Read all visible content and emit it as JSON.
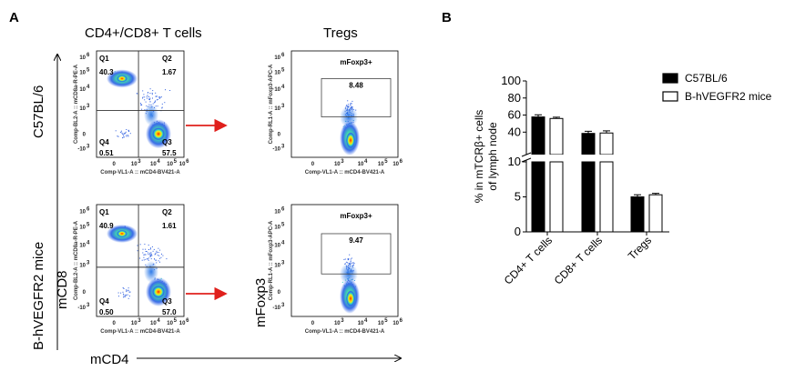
{
  "panel_a": {
    "letter": "A",
    "col1_title": "CD4+/CD8+ T cells",
    "col2_title": "Tregs",
    "row1_label": "C57BL/6",
    "row2_label": "B-hVEGFR2 mice",
    "ylabel_cd8": "mCD8",
    "ylabel_foxp3": "mFoxp3",
    "xlabel_cd4": "mCD4",
    "cd8_axis_text": "Comp-BL2-A :: mCD8a-R-PE-A",
    "foxp3_axis_text": "Comp-RL1-A :: mFoxp3-APC-A",
    "cd4_axis_text": "Comp-VL1-A :: mCD4-BV421-A",
    "gate_name": "mFoxp3+",
    "quadrant_names": [
      "Q1",
      "Q2",
      "Q4",
      "Q3"
    ],
    "plots": [
      {
        "q1": "40.3",
        "q2": "1.67",
        "q4": "0.51",
        "q3": "57.5",
        "tregs": "8.48"
      },
      {
        "q1": "40.9",
        "q2": "1.61",
        "q4": "0.50",
        "q3": "57.0",
        "tregs": "9.47"
      }
    ],
    "x_ticks": [
      "0",
      "10",
      "10",
      "10",
      "10"
    ],
    "x_tick_exps": [
      "",
      "3",
      "4",
      "5",
      "6"
    ],
    "y_ticks": [
      "10",
      "10",
      "10",
      "10",
      "0",
      "-10"
    ],
    "y_tick_exps": [
      "6",
      "5",
      "4",
      "3",
      "",
      "3"
    ]
  },
  "chart_data": {
    "letter": "B",
    "type": "bar",
    "ylabel_line1": "% in mTCRβ+ cells",
    "ylabel_line2": "of lymph node",
    "categories": [
      "CD4+ T cells",
      "CD8+ T cells",
      "Tregs"
    ],
    "y_ticks_upper": [
      "100",
      "80",
      "60",
      "40"
    ],
    "y_ticks_lower": [
      "10",
      "5",
      "0"
    ],
    "ylim_lower": [
      0,
      10
    ],
    "ylim_upper": [
      35,
      100
    ],
    "series": [
      {
        "name": "C57BL/6",
        "values": [
          57.8,
          38.5,
          5.0
        ],
        "errors": [
          2.5,
          2.5,
          0.3
        ],
        "color": "#000000"
      },
      {
        "name": "B-hVEGFR2 mice",
        "values": [
          56.0,
          39.0,
          5.3
        ],
        "errors": [
          1.5,
          2.5,
          0.2
        ],
        "color": "#ffffff"
      }
    ],
    "legend_position": "top-right"
  }
}
